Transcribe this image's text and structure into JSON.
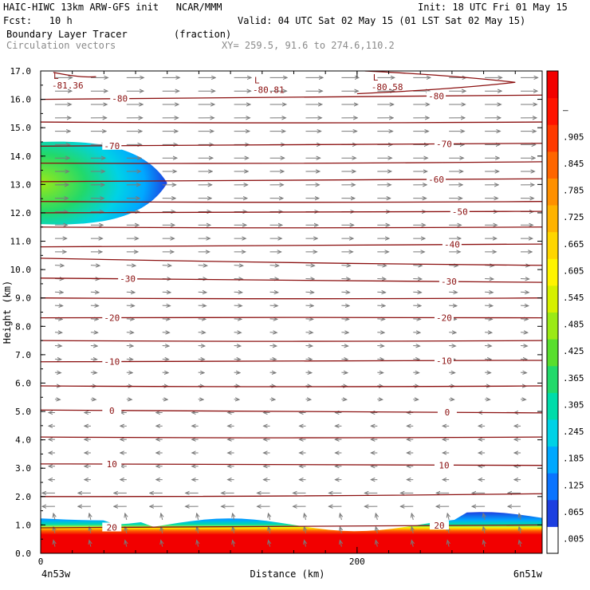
{
  "header": {
    "title_left": "HAIC-HIWC 13km ARW-GFS init   NCAR/MMM",
    "init": "Init: 18 UTC Fri 01 May 15",
    "fcst": "Fcst:   10 h",
    "valid": "Valid: 04 UTC Sat 02 May 15 (01 LST Sat 02 May 15)",
    "field": "Boundary Layer Tracer",
    "units": "(fraction)",
    "vectors": "Circulation vectors",
    "xy": "XY= 259.5, 91.6 to 274.6,110.2"
  },
  "axes": {
    "ylabel": "Height (km)",
    "xlabel": "Distance (km)",
    "x_left_label": "4n53w",
    "x_right_label": "6n51w",
    "x_tick_label": "200"
  },
  "colorbar": {
    "labels": [
      ".005",
      ".065",
      ".125",
      ".185",
      ".245",
      ".305",
      ".365",
      ".425",
      ".485",
      ".545",
      ".605",
      ".665",
      ".725",
      ".785",
      ".845",
      ".905",
      "1"
    ],
    "colors": [
      "#ffffff",
      "#1d3fe0",
      "#0a74ff",
      "#00a8ff",
      "#00d2e6",
      "#00dcaa",
      "#22d96a",
      "#59de2d",
      "#9bea16",
      "#d6f000",
      "#fff400",
      "#ffd600",
      "#ffb300",
      "#ff9000",
      "#ff6600",
      "#ff3a00",
      "#ff1300",
      "#f20000"
    ]
  },
  "chart_data": {
    "type": "cross-section",
    "title": "Boundary Layer Tracer",
    "ylabel": "Height (km)",
    "xlabel": "Distance (km)",
    "ylim": [
      0,
      17
    ],
    "xlim": [
      0,
      317
    ],
    "yticks": [
      "0.0",
      "1.0",
      "2.0",
      "3.0",
      "4.0",
      "5.0",
      "6.0",
      "7.0",
      "8.0",
      "9.0",
      "10.0",
      "11.0",
      "12.0",
      "13.0",
      "14.0",
      "15.0",
      "16.0",
      "17.0"
    ],
    "xticks": [
      0,
      200
    ],
    "temperature_contours": [
      {
        "y_left": 16.0,
        "y_right": 16.15,
        "label": "-80",
        "label_x": [
          50,
          250
        ]
      },
      {
        "y_left": 15.2,
        "y_right": 15.2
      },
      {
        "y_left": 14.35,
        "y_right": 14.45,
        "label": "-70",
        "label_x": [
          45,
          255
        ]
      },
      {
        "y_left": 13.75,
        "y_right": 13.8
      },
      {
        "y_left": 13.1,
        "y_right": 13.2,
        "label": "-60",
        "label_x": [
          250
        ]
      },
      {
        "y_left": 12.4,
        "y_right": 12.4
      },
      {
        "y_left": 12.0,
        "y_right": 12.05,
        "label": "-50",
        "label_x": [
          265
        ]
      },
      {
        "y_left": 11.5,
        "y_right": 11.5
      },
      {
        "y_left": 10.8,
        "y_right": 10.9,
        "label": "-40",
        "label_x": [
          260
        ]
      },
      {
        "y_left": 10.4,
        "y_right": 10.15
      },
      {
        "y_left": 9.7,
        "y_right": 9.55,
        "label": "-30",
        "label_x": [
          55,
          258
        ]
      },
      {
        "y_left": 9.0,
        "y_right": 9.0
      },
      {
        "y_left": 8.3,
        "y_right": 8.3,
        "label": "-20",
        "label_x": [
          45,
          255
        ]
      },
      {
        "y_left": 7.5,
        "y_right": 7.5
      },
      {
        "y_left": 6.75,
        "y_right": 6.8,
        "label": "-10",
        "label_x": [
          45,
          255
        ]
      },
      {
        "y_left": 5.9,
        "y_right": 5.9
      },
      {
        "y_left": 5.05,
        "y_right": 4.95,
        "label": "0",
        "label_x": [
          45,
          257
        ]
      },
      {
        "y_left": 4.1,
        "y_right": 4.1
      },
      {
        "y_left": 3.15,
        "y_right": 3.1,
        "label": "10",
        "label_x": [
          45,
          255
        ]
      },
      {
        "y_left": 2.0,
        "y_right": 2.1
      },
      {
        "y_left": 0.9,
        "y_right": 1.0,
        "label": "20",
        "label_x": [
          45,
          252
        ]
      }
    ],
    "low_labels": [
      {
        "letter": "L",
        "value": "-81.36",
        "x": 3,
        "y": 17.0
      },
      {
        "letter": "L",
        "value": "-80.81",
        "x": 130,
        "y": 16.85
      },
      {
        "letter": "L",
        "value": "-80.58",
        "x": 205,
        "y": 16.95
      }
    ],
    "tracer_regions": [
      {
        "name": "upper-plume",
        "x_max": 80,
        "y_min": 11.6,
        "y_max": 14.5,
        "peak": 0.5
      },
      {
        "name": "boundary-layer",
        "x_max": 317,
        "y_min": 0.0,
        "y_max": 1.4,
        "peak": 1.0
      }
    ]
  }
}
